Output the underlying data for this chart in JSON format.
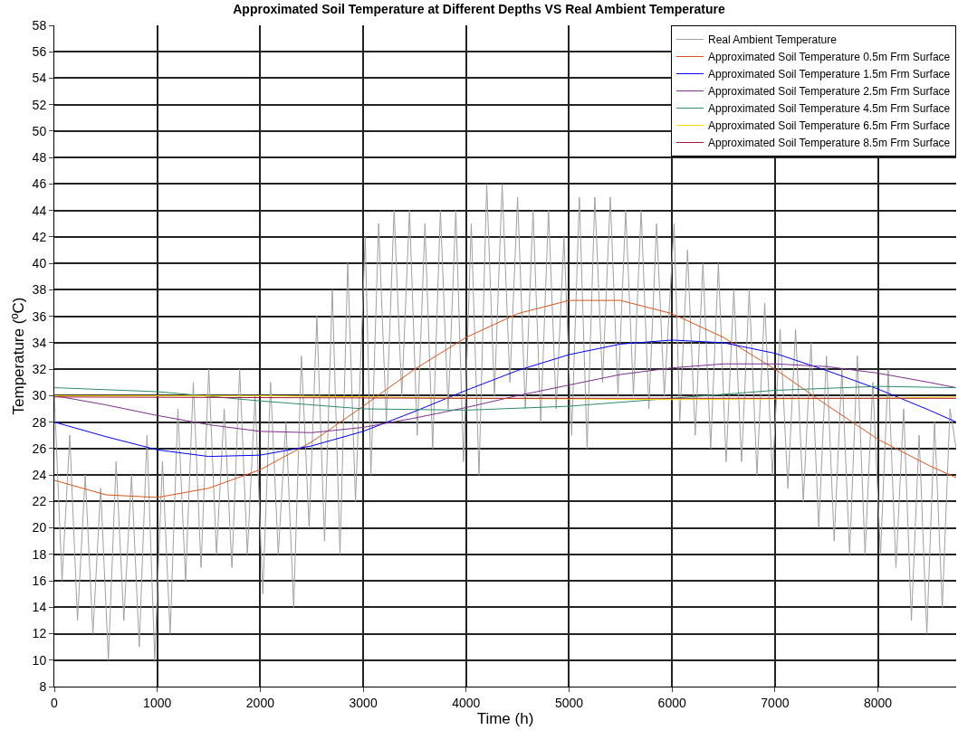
{
  "chart_data": {
    "type": "line",
    "title": "Approximated Soil Temperature at Different Depths VS Real Ambient Temperature",
    "xlabel": "Time (h)",
    "ylabel": "Temperature (ºC)",
    "xlim": [
      0,
      8760
    ],
    "ylim": [
      8,
      58
    ],
    "xticks": [
      0,
      1000,
      2000,
      3000,
      4000,
      5000,
      6000,
      7000,
      8000
    ],
    "yticks": [
      8,
      10,
      12,
      14,
      16,
      18,
      20,
      22,
      24,
      26,
      28,
      30,
      32,
      34,
      36,
      38,
      40,
      42,
      44,
      46,
      48,
      50,
      52,
      54,
      56,
      58
    ],
    "grid": true,
    "legend": "top right",
    "line_style": "solid",
    "marker": "none",
    "series": [
      {
        "name": "Real Ambient Temperature",
        "color": "#a0a0a0",
        "x": [
          0,
          75,
          150,
          225,
          300,
          375,
          450,
          525,
          600,
          675,
          750,
          825,
          900,
          975,
          1050,
          1125,
          1200,
          1275,
          1350,
          1425,
          1500,
          1575,
          1650,
          1725,
          1800,
          1875,
          1950,
          2025,
          2100,
          2175,
          2250,
          2325,
          2400,
          2475,
          2550,
          2625,
          2700,
          2775,
          2850,
          2925,
          3020,
          3075,
          3150,
          3225,
          3300,
          3375,
          3450,
          3525,
          3600,
          3675,
          3750,
          3825,
          3900,
          3975,
          4050,
          4125,
          4200,
          4275,
          4350,
          4425,
          4500,
          4575,
          4650,
          4725,
          4800,
          4875,
          4950,
          5025,
          5100,
          5175,
          5250,
          5325,
          5400,
          5475,
          5550,
          5625,
          5700,
          5775,
          5850,
          5925,
          6020,
          6075,
          6150,
          6225,
          6300,
          6375,
          6450,
          6525,
          6600,
          6675,
          6750,
          6825,
          6900,
          6975,
          7050,
          7125,
          7200,
          7275,
          7350,
          7425,
          7500,
          7575,
          7650,
          7725,
          7800,
          7875,
          7950,
          8025,
          8100,
          8175,
          8250,
          8325,
          8400,
          8475,
          8550,
          8625,
          8700,
          8760
        ],
        "values": [
          30,
          16,
          27,
          13,
          24,
          12,
          23,
          10,
          25,
          13,
          24,
          11,
          27,
          10,
          25,
          12,
          29,
          16,
          31,
          17,
          32,
          18,
          29,
          17,
          32,
          18,
          30,
          15,
          31,
          18,
          28,
          14,
          33,
          20,
          36,
          19,
          38,
          18,
          40,
          22,
          42,
          24,
          43,
          28,
          44,
          30,
          44,
          27,
          43,
          26,
          44,
          29,
          44,
          25,
          43,
          24,
          46,
          30,
          46,
          31,
          45,
          29,
          44,
          28,
          44,
          29,
          42,
          27,
          45,
          26,
          45,
          31,
          45,
          30,
          44,
          30,
          44,
          29,
          43,
          30,
          43,
          28,
          41,
          27,
          40,
          26,
          40,
          25,
          38,
          25,
          38,
          24,
          37,
          24,
          35,
          23,
          35,
          22,
          34,
          20,
          33,
          19,
          32,
          18,
          33,
          18,
          31,
          18,
          32,
          17,
          29,
          13,
          27,
          12,
          28,
          14,
          29,
          26
        ]
      },
      {
        "name": "Approximated Soil Temperature 0.5m Frm Surface",
        "color": "#d95319",
        "x": [
          0,
          500,
          1000,
          1500,
          2000,
          2500,
          3000,
          3500,
          4000,
          4500,
          5000,
          5500,
          6000,
          6500,
          7000,
          7500,
          8000,
          8500,
          8760
        ],
        "values": [
          23.6,
          22.5,
          22.3,
          23.0,
          24.4,
          26.5,
          29.2,
          32.0,
          34.4,
          36.2,
          37.2,
          37.2,
          36.2,
          34.4,
          32.0,
          29.3,
          26.7,
          24.7,
          23.8
        ]
      },
      {
        "name": "Approximated Soil Temperature 1.5m Frm Surface",
        "color": "#0000ff",
        "x": [
          0,
          500,
          1000,
          1500,
          2000,
          2500,
          3000,
          3500,
          4000,
          4500,
          5000,
          5500,
          6000,
          6500,
          7000,
          7500,
          8000,
          8500,
          8760
        ],
        "values": [
          28.0,
          26.9,
          25.9,
          25.4,
          25.5,
          26.2,
          27.3,
          28.8,
          30.4,
          31.9,
          33.1,
          33.9,
          34.2,
          34.0,
          33.2,
          31.9,
          30.5,
          28.9,
          28.0
        ]
      },
      {
        "name": "Approximated Soil Temperature 2.5m Frm Surface",
        "color": "#7e2f8e",
        "x": [
          0,
          500,
          1000,
          1500,
          2000,
          2500,
          3000,
          3500,
          4000,
          4500,
          5000,
          5500,
          6000,
          6500,
          7000,
          7500,
          8000,
          8500,
          8760
        ],
        "values": [
          30.0,
          29.3,
          28.5,
          27.8,
          27.3,
          27.2,
          27.6,
          28.3,
          29.1,
          30.0,
          30.8,
          31.6,
          32.1,
          32.4,
          32.4,
          32.2,
          31.7,
          31.0,
          30.6
        ]
      },
      {
        "name": "Approximated Soil Temperature 4.5m Frm Surface",
        "color": "#2e8b6e",
        "x": [
          0,
          1000,
          2000,
          3000,
          4000,
          5000,
          6000,
          7000,
          8000,
          8760
        ],
        "values": [
          30.6,
          30.3,
          29.6,
          29.0,
          28.9,
          29.2,
          29.8,
          30.4,
          30.7,
          30.6
        ]
      },
      {
        "name": "Approximated Soil Temperature 6.5m Frm Surface",
        "color": "#ffdd00",
        "x": [
          0,
          2000,
          4000,
          6000,
          8000,
          8760
        ],
        "values": [
          30.0,
          30.0,
          29.8,
          29.7,
          29.8,
          29.9
        ]
      },
      {
        "name": "Approximated Soil Temperature 8.5m Frm Surface",
        "color": "#a2142f",
        "x": [
          0,
          4000,
          8760
        ],
        "values": [
          29.9,
          29.8,
          29.8
        ]
      }
    ]
  }
}
